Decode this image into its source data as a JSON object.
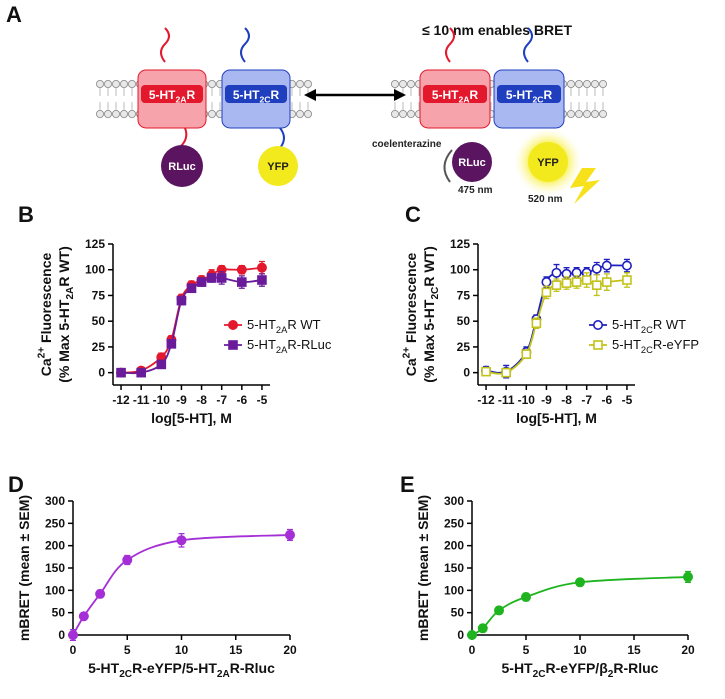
{
  "diagram": {
    "panel_label": "A",
    "bret_note": "≤ 10 nm enables BRET",
    "receptor_2a": [
      "5-HT",
      {
        "sub": "2A"
      },
      "R"
    ],
    "receptor_2c": [
      "5-HT",
      {
        "sub": "2C"
      },
      "R"
    ],
    "donor": "RLuc",
    "acceptor": "YFP",
    "substrate": "coelenterazine",
    "donor_emission": "475 nm",
    "acceptor_emission": "520 nm"
  },
  "chart_data": [
    {
      "type": "line",
      "panel_label": "B",
      "xlabel": "log[5-HT], M",
      "ylabel": [
        [
          "Ca",
          {
            "sup": "2+"
          },
          " Fluorescence"
        ],
        [
          "(% Max 5-HT",
          {
            "sub": "2A"
          },
          "R  WT)"
        ]
      ],
      "xlim": [
        -12.4,
        -4.6
      ],
      "ylim": [
        -12,
        125
      ],
      "xticks": [
        -12,
        -11,
        -10,
        -9,
        -8,
        -7,
        -6,
        -5
      ],
      "yticks": [
        0,
        25,
        50,
        75,
        100,
        125
      ],
      "legend": "lower right",
      "series": [
        {
          "name": [
            "5-HT",
            {
              "sub": "2A"
            },
            "R WT"
          ],
          "color": "#e3182d",
          "marker": "circle",
          "filled": true,
          "x": [
            -12,
            -11,
            -10,
            -9.5,
            -9,
            -8.5,
            -8,
            -7.5,
            -7,
            -6,
            -5
          ],
          "values": [
            0,
            2,
            15,
            32,
            72,
            85,
            90,
            95,
            100,
            100,
            102
          ],
          "errors": [
            3,
            2,
            4,
            4,
            4,
            4,
            4,
            5,
            4,
            4,
            6
          ]
        },
        {
          "name": [
            "5-HT",
            {
              "sub": "2A"
            },
            "R-RLuc"
          ],
          "color": "#6a1b9a",
          "marker": "square",
          "filled": true,
          "x": [
            -12,
            -11,
            -10,
            -9.5,
            -9,
            -8.5,
            -8,
            -7.5,
            -7,
            -6,
            -5
          ],
          "values": [
            0,
            0,
            8,
            28,
            70,
            82,
            88,
            92,
            92,
            88,
            90
          ],
          "errors": [
            2,
            2,
            3,
            3,
            4,
            4,
            4,
            4,
            6,
            6,
            6
          ]
        }
      ]
    },
    {
      "type": "line",
      "panel_label": "C",
      "xlabel": "log[5-HT], M",
      "ylabel": [
        [
          "Ca",
          {
            "sup": "2+"
          },
          " Fluorescence"
        ],
        [
          "(% Max 5-HT",
          {
            "sub": "2C"
          },
          "R  WT)"
        ]
      ],
      "xlim": [
        -12.4,
        -4.6
      ],
      "ylim": [
        -12,
        125
      ],
      "xticks": [
        -12,
        -11,
        -10,
        -9,
        -8,
        -7,
        -6,
        -5
      ],
      "yticks": [
        0,
        25,
        50,
        75,
        100,
        125
      ],
      "legend": "lower right",
      "series": [
        {
          "name": [
            "5-HT",
            {
              "sub": "2C"
            },
            "R WT"
          ],
          "color": "#1f1fbf",
          "marker": "circle",
          "filled": false,
          "x": [
            -12,
            -11,
            -10,
            -9.5,
            -9,
            -8.5,
            -8,
            -7.5,
            -7,
            -6.5,
            -6,
            -5
          ],
          "values": [
            2,
            1,
            20,
            52,
            88,
            97,
            96,
            97,
            97,
            101,
            104,
            104
          ],
          "errors": [
            4,
            6,
            5,
            4,
            5,
            8,
            6,
            5,
            5,
            6,
            6,
            6
          ]
        },
        {
          "name": [
            "5-HT",
            {
              "sub": "2C"
            },
            "R-eYFP"
          ],
          "color": "#c2c21a",
          "marker": "square",
          "filled": false,
          "x": [
            -12,
            -11,
            -10,
            -9.5,
            -9,
            -8.5,
            -8,
            -7.5,
            -7,
            -6.5,
            -6,
            -5
          ],
          "values": [
            1,
            0,
            18,
            48,
            78,
            85,
            87,
            88,
            90,
            85,
            88,
            90
          ],
          "errors": [
            3,
            4,
            4,
            5,
            6,
            6,
            6,
            6,
            7,
            10,
            8,
            7
          ]
        }
      ]
    },
    {
      "type": "line",
      "panel_label": "D",
      "xlabel": [
        "5-HT",
        {
          "sub": "2C"
        },
        "R-eYFP/5-HT",
        {
          "sub": "2A"
        },
        "R-Rluc"
      ],
      "ylabel": [
        "mBRET (mean ± SEM)"
      ],
      "xlim": [
        0,
        20
      ],
      "ylim": [
        0,
        300
      ],
      "xticks": [
        0,
        5,
        10,
        15,
        20
      ],
      "yticks": [
        0,
        50,
        100,
        150,
        200,
        250,
        300
      ],
      "series": [
        {
          "color": "#a52fd6",
          "marker": "circle",
          "filled": true,
          "x": [
            0,
            1,
            2.5,
            5,
            10,
            20
          ],
          "values": [
            0,
            42,
            92,
            168,
            212,
            224
          ],
          "errors": [
            12,
            8,
            8,
            10,
            15,
            12
          ]
        }
      ]
    },
    {
      "type": "line",
      "panel_label": "E",
      "xlabel": [
        "5-HT",
        {
          "sub": "2C"
        },
        "R-eYFP/β",
        {
          "sub": "2"
        },
        "R-Rluc"
      ],
      "ylabel": [
        "mBRET (mean ± SEM)"
      ],
      "xlim": [
        0,
        20
      ],
      "ylim": [
        0,
        300
      ],
      "xticks": [
        0,
        5,
        10,
        15,
        20
      ],
      "yticks": [
        0,
        50,
        100,
        150,
        200,
        250,
        300
      ],
      "series": [
        {
          "color": "#1fb41f",
          "marker": "circle",
          "filled": true,
          "x": [
            0,
            1,
            2.5,
            5,
            10,
            20
          ],
          "values": [
            0,
            15,
            55,
            85,
            118,
            130
          ],
          "errors": [
            5,
            8,
            8,
            8,
            8,
            12
          ]
        }
      ]
    }
  ]
}
